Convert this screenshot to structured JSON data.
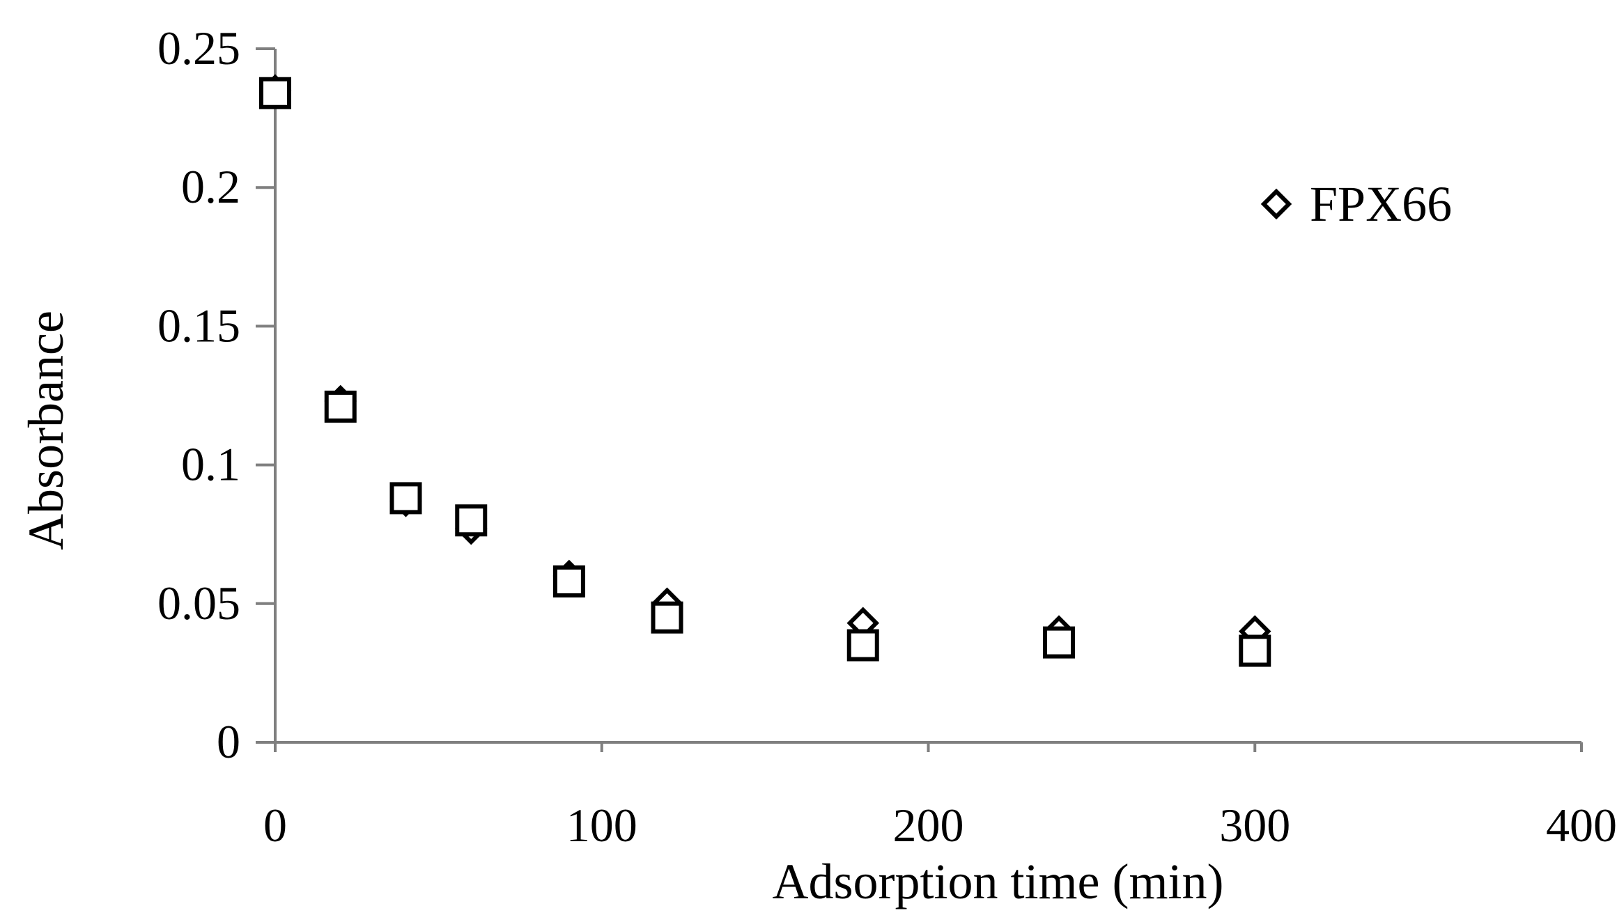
{
  "chart_data": {
    "type": "scatter",
    "title": "",
    "xlabel": "Adsorption time (min)",
    "ylabel": "Absorbance",
    "xlim": [
      0,
      400
    ],
    "ylim": [
      0,
      0.25
    ],
    "x_ticks": [
      {
        "value": 0,
        "label": "0"
      },
      {
        "value": 100,
        "label": "100"
      },
      {
        "value": 200,
        "label": "200"
      },
      {
        "value": 300,
        "label": "300"
      },
      {
        "value": 400,
        "label": "400"
      }
    ],
    "y_ticks": [
      {
        "value": 0,
        "label": "0"
      },
      {
        "value": 0.05,
        "label": "0.05"
      },
      {
        "value": 0.1,
        "label": "0.1"
      },
      {
        "value": 0.15,
        "label": "0.15"
      },
      {
        "value": 0.2,
        "label": "0.2"
      },
      {
        "value": 0.25,
        "label": "0.25"
      }
    ],
    "grid": false,
    "legend_position": "top-right",
    "series": [
      {
        "name": "FPX66",
        "marker": "diamond",
        "color": "#000000",
        "x": [
          0,
          20,
          40,
          60,
          90,
          120,
          180,
          240,
          300
        ],
        "y": [
          0.235,
          0.123,
          0.087,
          0.077,
          0.06,
          0.05,
          0.043,
          0.04,
          0.04
        ]
      },
      {
        "marker": "square",
        "color": "#000000",
        "x": [
          0,
          20,
          40,
          60,
          90,
          120,
          180,
          240,
          300
        ],
        "y": [
          0.234,
          0.121,
          0.088,
          0.08,
          0.058,
          0.045,
          0.035,
          0.036,
          0.033
        ]
      }
    ]
  }
}
